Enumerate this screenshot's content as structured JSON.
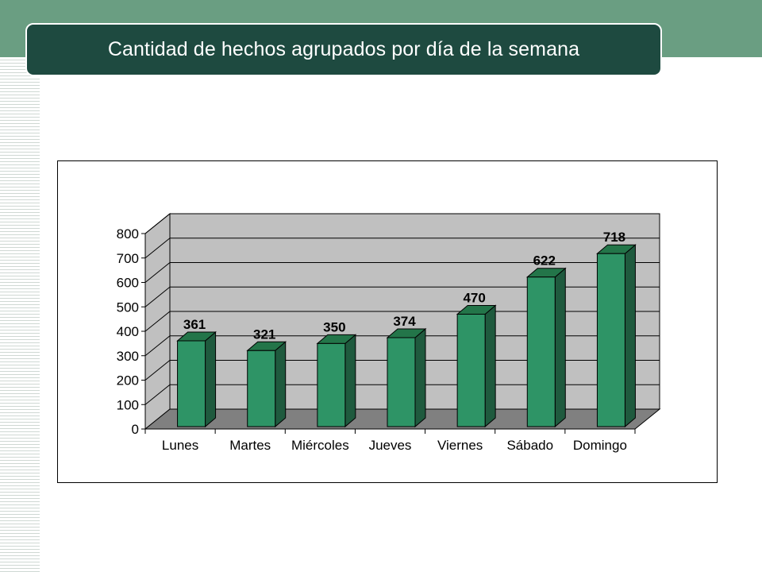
{
  "slide": {
    "title": "Cantidad de hechos agrupados por día de la semana"
  },
  "colors": {
    "header_band": "#6a9e82",
    "title_bar": "#1e4a40",
    "bar_front": "#2e9466",
    "bar_side": "#1f5a3e",
    "bar_top": "#237549",
    "plot_wall": "#c0c0c0",
    "plot_floor": "#808080"
  },
  "chart_data": {
    "type": "bar",
    "title": "",
    "xlabel": "",
    "ylabel": "",
    "categories": [
      "Lunes",
      "Martes",
      "Miércoles",
      "Jueves",
      "Viernes",
      "Sábado",
      "Domingo"
    ],
    "values": [
      361,
      321,
      350,
      374,
      470,
      622,
      718
    ],
    "data_labels": [
      "361",
      "321",
      "350",
      "374",
      "470",
      "622",
      "718"
    ],
    "ylim": [
      0,
      800
    ],
    "yticks": [
      0,
      100,
      200,
      300,
      400,
      500,
      600,
      700,
      800
    ],
    "style": "3d-column",
    "grid": true,
    "legend": "none"
  }
}
